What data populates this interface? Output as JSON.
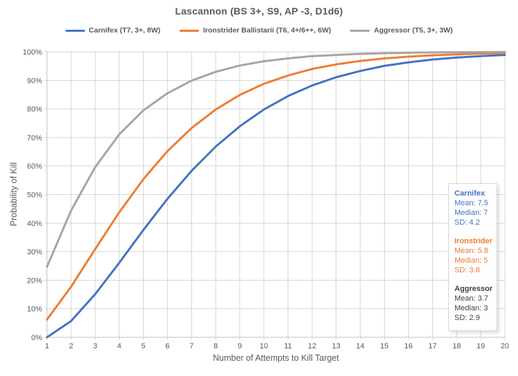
{
  "title": "Lascannon (BS 3+, S9, AP -3, D1d6)",
  "chart_data": {
    "type": "line",
    "x": [
      1,
      2,
      3,
      4,
      5,
      6,
      7,
      8,
      9,
      10,
      11,
      12,
      13,
      14,
      15,
      16,
      17,
      18,
      19,
      20
    ],
    "series": [
      {
        "name": "Carnifex",
        "legend_label": "Carnifex (T7, 3+, 8W)",
        "color": "#4472C4",
        "values": [
          0,
          5.7,
          15.1,
          26.1,
          37.6,
          48.5,
          58.3,
          66.8,
          73.9,
          79.8,
          84.5,
          88.2,
          91.1,
          93.3,
          95.1,
          96.3,
          97.3,
          98.0,
          98.5,
          98.9
        ]
      },
      {
        "name": "Ironstrider",
        "legend_label": "Ironstrider Ballistarii (T6, 4+/6++, 6W)",
        "color": "#ED7D31",
        "values": [
          6.2,
          17.7,
          30.9,
          43.8,
          55.4,
          65.2,
          73.3,
          79.8,
          84.9,
          88.8,
          91.7,
          94.0,
          95.6,
          96.8,
          97.7,
          98.3,
          98.8,
          99.1,
          99.4,
          99.5
        ]
      },
      {
        "name": "Aggressor",
        "legend_label": "Aggressor (T5, 3+, 3W)",
        "color": "#A5A5A5",
        "values": [
          24.7,
          44.4,
          59.6,
          71.1,
          79.5,
          85.5,
          89.9,
          93.0,
          95.2,
          96.7,
          97.7,
          98.5,
          98.9,
          99.3,
          99.5,
          99.7,
          99.8,
          99.85,
          99.9,
          99.93
        ]
      }
    ],
    "xlabel": "Number of Attempts to Kill Target",
    "ylabel": "Probability of Kill",
    "xlim": [
      1,
      20
    ],
    "ylim": [
      0,
      100
    ],
    "y_tick_step": 10,
    "y_tick_suffix": "%",
    "grid": true,
    "legend_position": "top"
  },
  "stats_panel": {
    "groups": [
      {
        "name": "Carnifex",
        "color": "#4472C4",
        "lines": [
          "Mean: 7.5",
          "Median: 7",
          "SD: 4.2"
        ]
      },
      {
        "name": "Ironstrider",
        "color": "#ED7D31",
        "lines": [
          "Mean: 5.8",
          "Median: 5",
          "SD: 3.8"
        ]
      },
      {
        "name": "Aggressor",
        "color": "#404040",
        "lines": [
          "Mean: 3.7",
          "Median: 3",
          "SD: 2.9"
        ]
      }
    ]
  },
  "colors": {
    "gridline": "#d6d6d6",
    "axis_line": "#bfbfbf",
    "axis_text": "#595959",
    "title_text": "#595959"
  }
}
